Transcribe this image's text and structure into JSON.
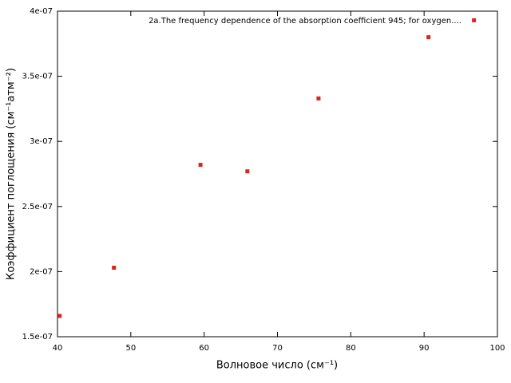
{
  "chart_data": {
    "type": "scatter",
    "title": "2a.The frequency dependence of the absorption coefficient    945; for oxygen....",
    "x_label": "Волновое число (см⁻¹)",
    "y_label": "Коэффициент поглощения (см⁻¹атм⁻²)",
    "color": "#d7261e",
    "x": [
      40.3,
      47.7,
      59.5,
      65.9,
      75.6,
      90.6,
      96.8
    ],
    "values": [
      1.66e-07,
      2.03e-07,
      2.82e-07,
      2.77e-07,
      3.33e-07,
      3.8e-07,
      3.93e-07
    ],
    "xlim": [
      40,
      100
    ],
    "xticks": [
      40,
      50,
      60,
      70,
      80,
      90,
      100
    ],
    "ylim": [
      1.5e-07,
      4e-07
    ],
    "yticks": [
      {
        "value": 1.5e-07,
        "label": "1.5e-07"
      },
      {
        "value": 2e-07,
        "label": "2e-07"
      },
      {
        "value": 2.5e-07,
        "label": "2.5e-07"
      },
      {
        "value": 3e-07,
        "label": "3e-07"
      },
      {
        "value": 3.5e-07,
        "label": "3.5e-07"
      },
      {
        "value": 4e-07,
        "label": "4e-07"
      }
    ],
    "grid": false
  }
}
